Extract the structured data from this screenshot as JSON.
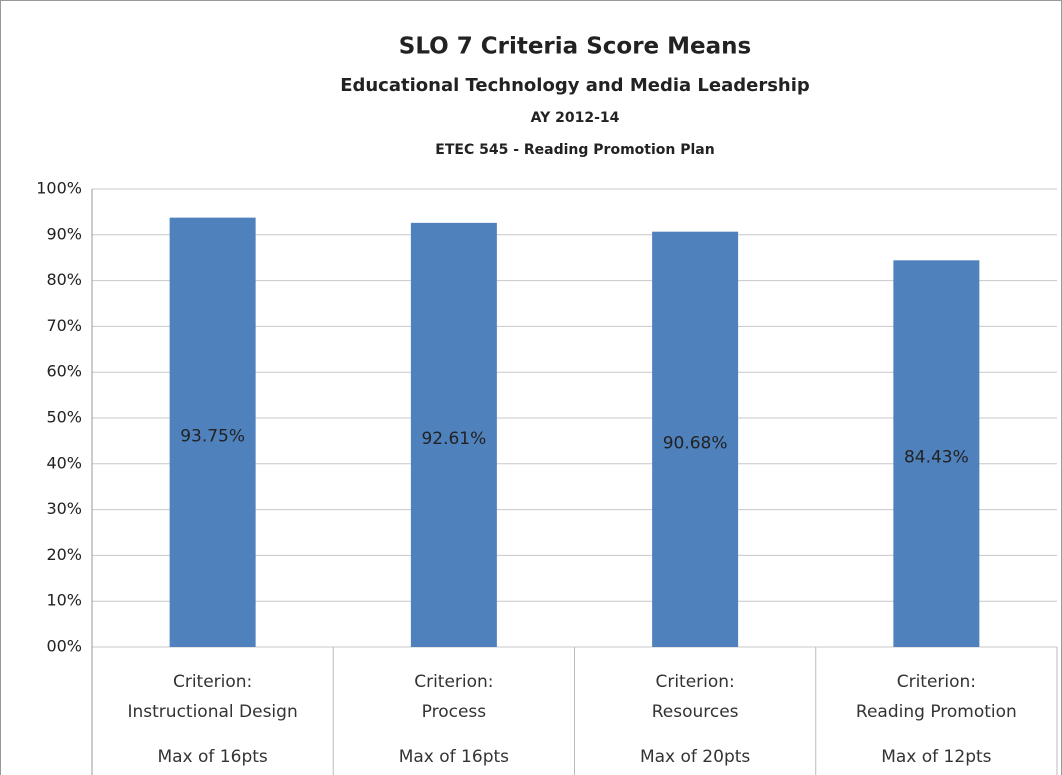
{
  "chart_data": {
    "type": "bar",
    "title": "SLO 7 Criteria Score Means",
    "subtitle": "Educational Technology and Media Leadership",
    "subtitle2": "AY 2012-14",
    "subtitle3": "ETEC 545 - Reading Promotion Plan",
    "categories": [
      "Criterion:\nInstructional Design",
      "Criterion:\nProcess",
      "Criterion:\nResources",
      "Criterion:\nReading Promotion"
    ],
    "category_notes": [
      "Max of 16pts",
      "Max of 16pts",
      "Max of 20pts",
      "Max of 12pts"
    ],
    "values": [
      93.75,
      92.61,
      90.68,
      84.43
    ],
    "value_labels": [
      "93.75%",
      "92.61%",
      "90.68%",
      "84.43%"
    ],
    "color": "#4f81bd",
    "ylim": [
      0,
      100
    ],
    "yticks": [
      {
        "value": 0,
        "label": "00%"
      },
      {
        "value": 10,
        "label": "10%"
      },
      {
        "value": 20,
        "label": "20%"
      },
      {
        "value": 30,
        "label": "30%"
      },
      {
        "value": 40,
        "label": "40%"
      },
      {
        "value": 50,
        "label": "50%"
      },
      {
        "value": 60,
        "label": "60%"
      },
      {
        "value": 70,
        "label": "70%"
      },
      {
        "value": 80,
        "label": "80%"
      },
      {
        "value": 90,
        "label": "90%"
      },
      {
        "value": 100,
        "label": "100%"
      }
    ],
    "grid": true
  }
}
